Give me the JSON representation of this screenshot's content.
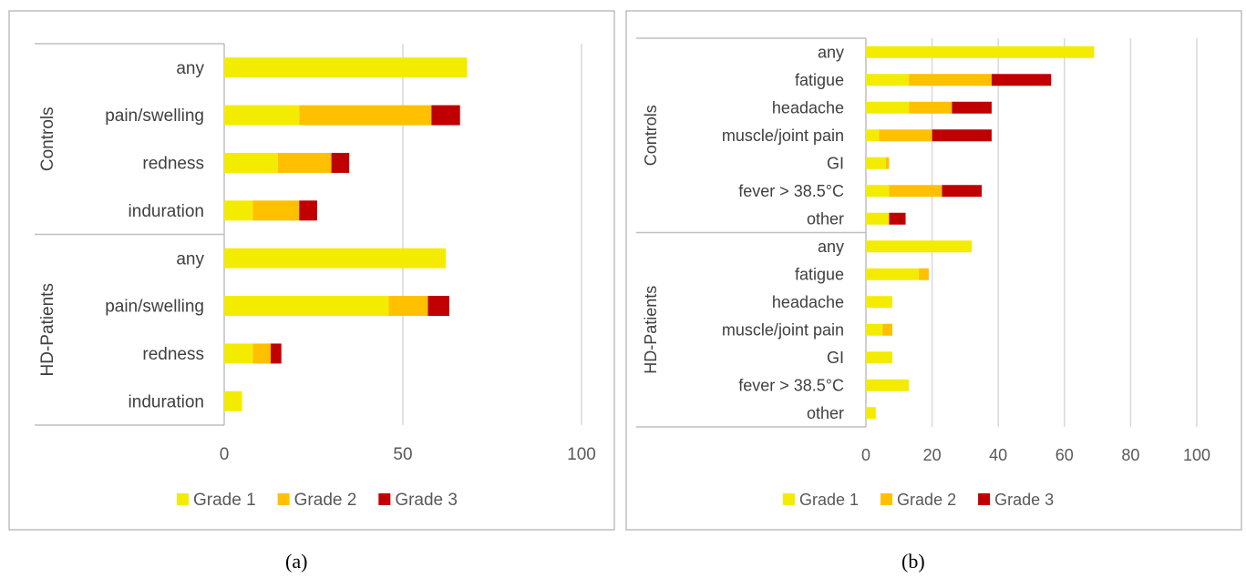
{
  "colors": {
    "grade1": "#f3ec00",
    "grade2": "#ffc000",
    "grade3": "#c00000"
  },
  "panel_labels": [
    "(a)",
    "(b)"
  ],
  "chart_data": [
    {
      "type": "bar",
      "orientation": "horizontal",
      "stacked": true,
      "panel": "a",
      "groups": [
        {
          "label": "Controls",
          "categories": [
            "any",
            "pain/swelling",
            "redness",
            "induration"
          ]
        },
        {
          "label": "HD-Patients",
          "categories": [
            "any",
            "pain/swelling",
            "redness",
            "induration"
          ]
        }
      ],
      "categories": [
        "any",
        "pain/swelling",
        "redness",
        "induration",
        "any",
        "pain/swelling",
        "redness",
        "induration"
      ],
      "series": [
        {
          "name": "Grade 1",
          "values": [
            68,
            21,
            15,
            8,
            62,
            46,
            8,
            5
          ]
        },
        {
          "name": "Grade 2",
          "values": [
            0,
            37,
            15,
            13,
            0,
            11,
            5,
            0
          ]
        },
        {
          "name": "Grade 3",
          "values": [
            0,
            8,
            5,
            5,
            0,
            6,
            3,
            0
          ]
        }
      ],
      "xlim": [
        0,
        100
      ],
      "xticks": [
        0,
        50,
        100
      ],
      "grid": true,
      "legend": "bottom"
    },
    {
      "type": "bar",
      "orientation": "horizontal",
      "stacked": true,
      "panel": "b",
      "groups": [
        {
          "label": "Controls",
          "categories": [
            "any",
            "fatigue",
            "headache",
            "muscle/joint pain",
            "GI",
            "fever > 38.5°C",
            "other"
          ]
        },
        {
          "label": "HD-Patients",
          "categories": [
            "any",
            "fatigue",
            "headache",
            "muscle/joint pain",
            "GI",
            "fever > 38.5°C",
            "other"
          ]
        }
      ],
      "categories": [
        "any",
        "fatigue",
        "headache",
        "muscle/joint pain",
        "GI",
        "fever > 38.5°C",
        "other",
        "any",
        "fatigue",
        "headache",
        "muscle/joint pain",
        "GI",
        "fever > 38.5°C",
        "other"
      ],
      "series": [
        {
          "name": "Grade 1",
          "values": [
            69,
            13,
            13,
            4,
            6,
            7,
            7,
            32,
            16,
            8,
            5,
            8,
            13,
            3
          ]
        },
        {
          "name": "Grade 2",
          "values": [
            0,
            25,
            13,
            16,
            1,
            16,
            0,
            0,
            3,
            0,
            3,
            0,
            0,
            0
          ]
        },
        {
          "name": "Grade 3",
          "values": [
            0,
            18,
            12,
            18,
            0,
            12,
            5,
            0,
            0,
            0,
            0,
            0,
            0,
            0
          ]
        }
      ],
      "xlim": [
        0,
        100
      ],
      "xticks": [
        0,
        20,
        40,
        60,
        80,
        100
      ],
      "grid": true,
      "legend": "bottom"
    }
  ]
}
